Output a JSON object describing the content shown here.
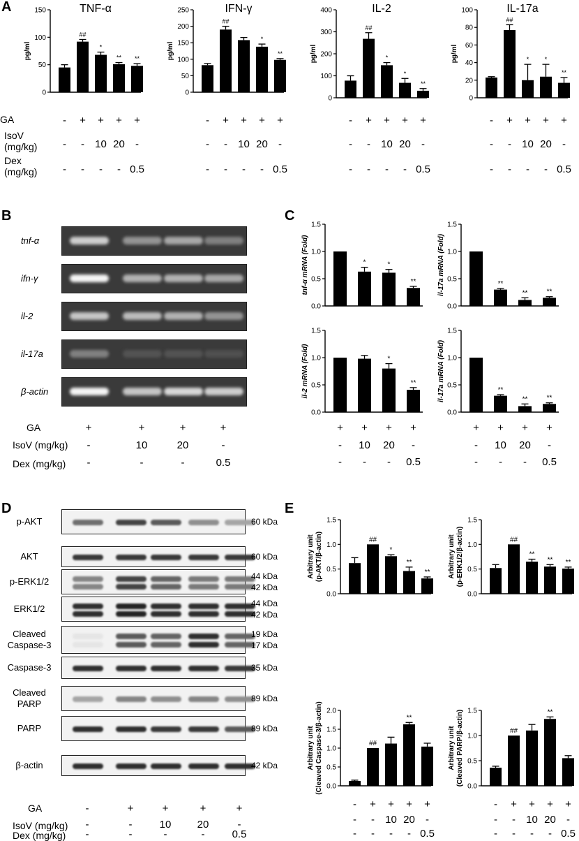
{
  "panel_labels": {
    "a": "A",
    "b": "B",
    "c": "C",
    "d": "D",
    "e": "E"
  },
  "row_labels": {
    "ga": "GA",
    "isov_a1": "IsoV",
    "isov_a2": "(mg/kg)",
    "dex_a1": "Dex",
    "dex_a2": "(mg/kg)",
    "isov": "IsoV (mg/kg)",
    "dex": "Dex (mg/kg)"
  },
  "conditions": {
    "a_ga": [
      "-",
      "+",
      "+",
      "+",
      "+"
    ],
    "a_isov": [
      "-",
      "-",
      "10",
      "20",
      "-"
    ],
    "a_dex": [
      "-",
      "-",
      "-",
      "-",
      "0.5"
    ],
    "b_ga": [
      "+",
      "+",
      "+",
      "+"
    ],
    "b_isov": [
      "-",
      "10",
      "20",
      "-"
    ],
    "b_dex": [
      "-",
      "-",
      "-",
      "0.5"
    ]
  },
  "gel": {
    "lanes": [
      "tnf-α",
      "ifn-γ",
      "il-2",
      "il-17a",
      "β-actin"
    ],
    "intensity": [
      [
        0.75,
        0.45,
        0.55,
        0.35
      ],
      [
        0.95,
        0.6,
        0.6,
        0.55
      ],
      [
        0.7,
        0.65,
        0.6,
        0.45
      ],
      [
        0.35,
        0.12,
        0.12,
        0.1
      ],
      [
        0.95,
        0.7,
        0.8,
        0.75
      ]
    ]
  },
  "western": {
    "rows": [
      {
        "label": "p-AKT",
        "kda": "60 kDa",
        "int": [
          0.6,
          0.8,
          0.7,
          0.45,
          0.35
        ],
        "double": false
      },
      {
        "label": "AKT",
        "kda": "60 kDa",
        "int": [
          0.85,
          0.85,
          0.85,
          0.85,
          0.85
        ],
        "double": false
      },
      {
        "label": "p-ERK1/2",
        "kda": "44 kDa",
        "kda2": "42 kDa",
        "int": [
          0.5,
          0.8,
          0.65,
          0.55,
          0.55
        ],
        "double": true
      },
      {
        "label": "ERK1/2",
        "kda": "44 kDa",
        "kda2": "42 kDa",
        "int": [
          0.9,
          0.95,
          0.9,
          0.9,
          0.9
        ],
        "double": true
      },
      {
        "label": "Cleaved",
        "label2": "Caspase-3",
        "kda": "19 kDa",
        "kda2": "17 kDa",
        "int": [
          0.05,
          0.7,
          0.65,
          0.9,
          0.65
        ],
        "double": true
      },
      {
        "label": "Caspase-3",
        "kda": "35 kDa",
        "int": [
          0.9,
          0.9,
          0.9,
          0.9,
          0.85
        ],
        "double": false
      },
      {
        "label": "Cleaved",
        "label2": "PARP",
        "kda": "89 kDa",
        "int": [
          0.35,
          0.5,
          0.45,
          0.5,
          0.45
        ],
        "double": false
      },
      {
        "label": "PARP",
        "kda": "89 kDa",
        "int": [
          0.9,
          0.9,
          0.85,
          0.85,
          0.7
        ],
        "double": false
      },
      {
        "label": "β-actin",
        "kda": "42 kDa",
        "int": [
          0.9,
          0.9,
          0.9,
          0.9,
          0.9
        ],
        "double": false
      }
    ]
  },
  "chart_data": [
    {
      "id": "a1",
      "type": "bar",
      "title": "TNF-α",
      "ylabel": "pg/ml",
      "ylim": [
        0,
        150
      ],
      "yticks": [
        0,
        50,
        100,
        150
      ],
      "values": [
        45,
        92,
        68,
        51,
        48
      ],
      "errors": [
        5,
        4,
        5,
        3,
        4
      ],
      "marks": [
        "",
        "##",
        "*",
        "**",
        "**"
      ]
    },
    {
      "id": "a2",
      "type": "bar",
      "title": "IFN-γ",
      "ylabel": "pg/ml",
      "ylim": [
        0,
        250
      ],
      "yticks": [
        0,
        50,
        100,
        150,
        200,
        250
      ],
      "values": [
        82,
        190,
        158,
        138,
        98
      ],
      "errors": [
        5,
        10,
        8,
        8,
        4
      ],
      "marks": [
        "",
        "##",
        "",
        "*",
        "**"
      ]
    },
    {
      "id": "a3",
      "type": "bar",
      "title": "IL-2",
      "ylabel": "pg/ml",
      "ylim": [
        0,
        400
      ],
      "yticks": [
        0,
        100,
        200,
        300,
        400
      ],
      "values": [
        78,
        268,
        148,
        68,
        32
      ],
      "errors": [
        22,
        28,
        12,
        20,
        10
      ],
      "marks": [
        "",
        "##",
        "*",
        "*",
        "**"
      ]
    },
    {
      "id": "a4",
      "type": "bar",
      "title": "IL-17a",
      "ylabel": "pg/ml",
      "ylim": [
        0,
        100
      ],
      "yticks": [
        0,
        20,
        40,
        60,
        80,
        100
      ],
      "values": [
        23,
        77,
        20,
        24,
        17
      ],
      "errors": [
        1,
        6,
        18,
        14,
        6
      ],
      "marks": [
        "",
        "##",
        "*",
        "*",
        "**"
      ]
    },
    {
      "id": "c1",
      "type": "bar",
      "ylabel": "tnf-α mRNA (Fold)",
      "ylim": [
        0,
        1.5
      ],
      "yticks": [
        0.0,
        0.5,
        1.0,
        1.5
      ],
      "values": [
        1.0,
        0.63,
        0.61,
        0.33
      ],
      "errors": [
        0,
        0.08,
        0.06,
        0.03
      ],
      "marks": [
        "",
        "*",
        "*",
        "**"
      ]
    },
    {
      "id": "c2",
      "type": "bar",
      "ylabel": "il-17a mRNA (Fold)",
      "ylim": [
        0,
        1.5
      ],
      "yticks": [
        0.0,
        0.5,
        1.0,
        1.5
      ],
      "values": [
        1.0,
        0.3,
        0.11,
        0.15
      ],
      "errors": [
        0,
        0.02,
        0.04,
        0.02
      ],
      "marks": [
        "",
        "**",
        "**",
        "**"
      ]
    },
    {
      "id": "c3",
      "type": "bar",
      "ylabel": "il-2 mRNA (Fold)",
      "ylim": [
        0,
        1.5
      ],
      "yticks": [
        0.0,
        0.5,
        1.0,
        1.5
      ],
      "values": [
        1.0,
        0.98,
        0.8,
        0.41
      ],
      "errors": [
        0,
        0.06,
        0.09,
        0.04
      ],
      "marks": [
        "",
        "",
        "*",
        "**"
      ]
    },
    {
      "id": "c4",
      "type": "bar",
      "ylabel": "il-17a mRNA (Fold)",
      "ylim": [
        0,
        1.5
      ],
      "yticks": [
        0.0,
        0.5,
        1.0,
        1.5
      ],
      "values": [
        1.0,
        0.3,
        0.11,
        0.15
      ],
      "errors": [
        0,
        0.02,
        0.04,
        0.02
      ],
      "marks": [
        "",
        "**",
        "**",
        "**"
      ]
    },
    {
      "id": "e1",
      "type": "bar",
      "ylabel": "Arbitrary unit",
      "ylabel2": "(p-AKT/β-actin)",
      "ylim": [
        0,
        1.5
      ],
      "yticks": [
        0.0,
        0.5,
        1.0,
        1.5
      ],
      "values": [
        0.62,
        1.0,
        0.76,
        0.46,
        0.31
      ],
      "errors": [
        0.11,
        0,
        0.03,
        0.08,
        0.03
      ],
      "marks": [
        "",
        "##",
        "*",
        "**",
        "**"
      ]
    },
    {
      "id": "e2",
      "type": "bar",
      "ylabel": "Arbitrary unit",
      "ylabel2": "(p-ERK1/2/β-actin)",
      "ylim": [
        0,
        1.5
      ],
      "yticks": [
        0.0,
        0.5,
        1.0,
        1.5
      ],
      "values": [
        0.52,
        1.0,
        0.65,
        0.55,
        0.51
      ],
      "errors": [
        0.07,
        0,
        0.05,
        0.04,
        0.03
      ],
      "marks": [
        "",
        "##",
        "**",
        "**",
        "**"
      ]
    },
    {
      "id": "e3",
      "type": "bar",
      "ylabel": "Arbitrary unit",
      "ylabel2": "(Cleaved Caspase-3/β-actin)",
      "ylim": [
        0,
        2.0
      ],
      "yticks": [
        0.0,
        0.5,
        1.0,
        1.5,
        2.0
      ],
      "values": [
        0.13,
        1.0,
        1.12,
        1.63,
        1.04
      ],
      "errors": [
        0.02,
        0,
        0.17,
        0.05,
        0.09
      ],
      "marks": [
        "",
        "##",
        "",
        "**",
        ""
      ]
    },
    {
      "id": "e4",
      "type": "bar",
      "ylabel": "Arbitrary unit",
      "ylabel2": "(Cleaved PARP/β-actin)",
      "ylim": [
        0,
        1.5
      ],
      "yticks": [
        0.0,
        0.5,
        1.0,
        1.5
      ],
      "values": [
        0.36,
        1.0,
        1.1,
        1.33,
        0.55
      ],
      "errors": [
        0.03,
        0,
        0.12,
        0.04,
        0.05
      ],
      "marks": [
        "",
        "##",
        "",
        "**",
        ""
      ]
    }
  ]
}
